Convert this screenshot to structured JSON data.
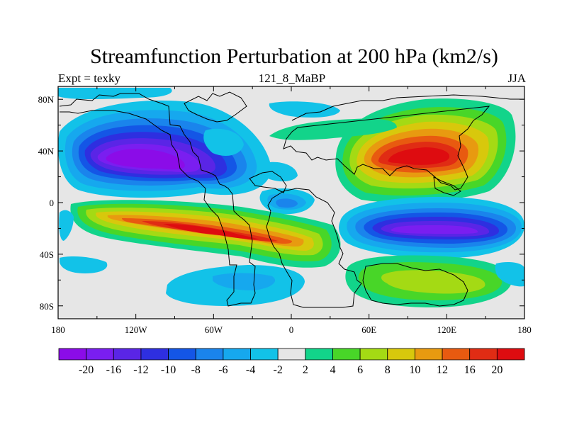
{
  "title": "Streamfunction Perturbation at 200 hPa (km2/s)",
  "left_string": "Expt = texky",
  "center_string": "121_8_MaBP",
  "right_string": "JJA",
  "chart_data": {
    "type": "heatmap",
    "map_projection": "cylindrical-equidistant",
    "x_ticks": [
      "180",
      "120W",
      "60W",
      "0",
      "60E",
      "120E",
      "180"
    ],
    "y_ticks": [
      "80N",
      "40N",
      "0",
      "40S",
      "80S"
    ],
    "xlim": [
      -180,
      180
    ],
    "ylim": [
      -90,
      90
    ],
    "colorbar": {
      "labels": [
        "-20",
        "-16",
        "-12",
        "-10",
        "-8",
        "-6",
        "-4",
        "-2",
        "2",
        "4",
        "6",
        "8",
        "10",
        "12",
        "16",
        "20"
      ],
      "colors": [
        "#8b0ce8",
        "#7a1ef0",
        "#5a25e6",
        "#2e2fe0",
        "#1456e6",
        "#1a84ec",
        "#16a8ee",
        "#12c2e8",
        "#e6e6e6",
        "#12d48a",
        "#48d628",
        "#a4da14",
        "#d8c80c",
        "#e89a10",
        "#e85a10",
        "#e02c14",
        "#de0c10"
      ]
    },
    "features": [
      {
        "name": "North Pacific low",
        "lon": -122,
        "lat": 33,
        "value": -20
      },
      {
        "name": "South Pacific high",
        "lon": -85,
        "lat": -25,
        "value": 16
      },
      {
        "name": "Asian high",
        "lon": 110,
        "lat": 30,
        "value": 20
      },
      {
        "name": "South Indian low",
        "lon": 125,
        "lat": -25,
        "value": -20
      },
      {
        "name": "Southern Ocean high",
        "lon": 110,
        "lat": -60,
        "value": 6
      },
      {
        "name": "South Atlantic low",
        "lon": -35,
        "lat": -62,
        "value": -4
      },
      {
        "name": "Equatorial Atlantic low",
        "lon": 0,
        "lat": -3,
        "value": -6
      }
    ]
  }
}
